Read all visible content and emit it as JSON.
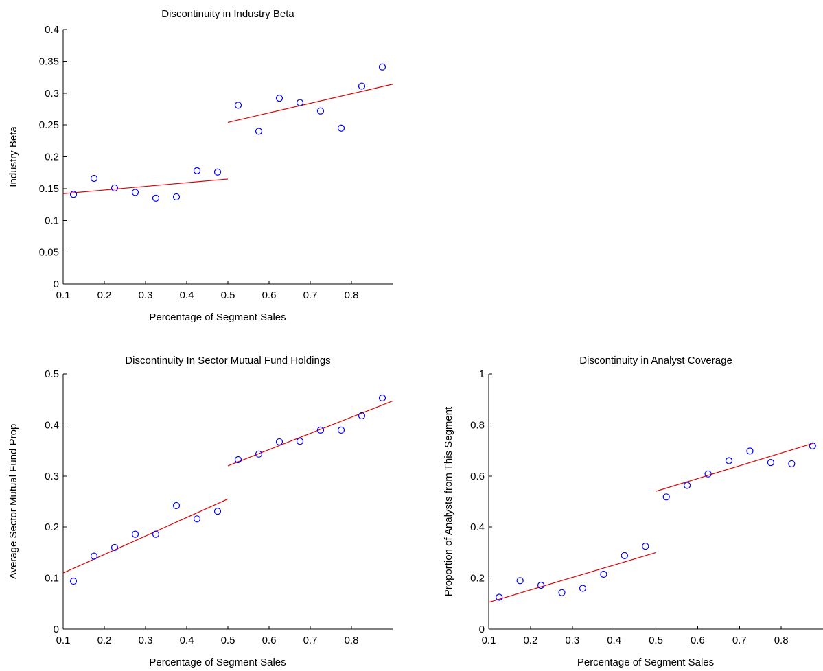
{
  "chart_data": [
    {
      "type": "scatter",
      "title": "Discontinuity in Industry Beta",
      "xlabel": "Percentage of Segment Sales",
      "ylabel": "Industry Beta",
      "xlim": [
        0.1,
        0.9
      ],
      "ylim": [
        0,
        0.4
      ],
      "xticks": [
        0.1,
        0.2,
        0.3,
        0.4,
        0.5,
        0.6,
        0.7,
        0.8
      ],
      "yticks": [
        0,
        0.05,
        0.1,
        0.15,
        0.2,
        0.25,
        0.3,
        0.35,
        0.4
      ],
      "xtick_labels": [
        "0.1",
        "0.2",
        "0.3",
        "0.4",
        "0.5",
        "0.6",
        "0.7",
        "0.8"
      ],
      "ytick_labels": [
        "0",
        "0.05",
        "0.1",
        "0.15",
        "0.2",
        "0.25",
        "0.3",
        "0.35",
        "0.4"
      ],
      "points": [
        [
          0.125,
          0.141
        ],
        [
          0.175,
          0.166
        ],
        [
          0.225,
          0.151
        ],
        [
          0.275,
          0.144
        ],
        [
          0.325,
          0.135
        ],
        [
          0.375,
          0.137
        ],
        [
          0.425,
          0.178
        ],
        [
          0.475,
          0.176
        ],
        [
          0.525,
          0.281
        ],
        [
          0.575,
          0.24
        ],
        [
          0.625,
          0.292
        ],
        [
          0.675,
          0.285
        ],
        [
          0.725,
          0.272
        ],
        [
          0.775,
          0.245
        ],
        [
          0.825,
          0.311
        ],
        [
          0.875,
          0.341
        ]
      ],
      "fit_lines": [
        [
          [
            0.1,
            0.142
          ],
          [
            0.5,
            0.165
          ]
        ],
        [
          [
            0.5,
            0.254
          ],
          [
            0.9,
            0.314
          ]
        ]
      ],
      "colors": {
        "points": "#0000ff",
        "fit": "#e00000"
      }
    },
    {
      "type": "scatter",
      "title": "Discontinuity In Sector Mutual Fund Holdings",
      "xlabel": "Percentage of Segment Sales",
      "ylabel": "Average Sector Mutual Fund Prop",
      "xlim": [
        0.1,
        0.9
      ],
      "ylim": [
        0,
        0.5
      ],
      "xticks": [
        0.1,
        0.2,
        0.3,
        0.4,
        0.5,
        0.6,
        0.7,
        0.8
      ],
      "yticks": [
        0,
        0.1,
        0.2,
        0.3,
        0.4,
        0.5
      ],
      "xtick_labels": [
        "0.1",
        "0.2",
        "0.3",
        "0.4",
        "0.5",
        "0.6",
        "0.7",
        "0.8"
      ],
      "ytick_labels": [
        "0",
        "0.1",
        "0.2",
        "0.3",
        "0.4",
        "0.5"
      ],
      "points": [
        [
          0.125,
          0.094
        ],
        [
          0.175,
          0.143
        ],
        [
          0.225,
          0.16
        ],
        [
          0.275,
          0.186
        ],
        [
          0.325,
          0.186
        ],
        [
          0.375,
          0.242
        ],
        [
          0.425,
          0.216
        ],
        [
          0.475,
          0.231
        ],
        [
          0.525,
          0.332
        ],
        [
          0.575,
          0.343
        ],
        [
          0.625,
          0.367
        ],
        [
          0.675,
          0.368
        ],
        [
          0.725,
          0.39
        ],
        [
          0.775,
          0.39
        ],
        [
          0.825,
          0.418
        ],
        [
          0.875,
          0.453
        ]
      ],
      "fit_lines": [
        [
          [
            0.1,
            0.11
          ],
          [
            0.5,
            0.255
          ]
        ],
        [
          [
            0.5,
            0.32
          ],
          [
            0.9,
            0.447
          ]
        ]
      ],
      "colors": {
        "points": "#0000ff",
        "fit": "#e00000"
      }
    },
    {
      "type": "scatter",
      "title": "Discontinuity in Analyst Coverage",
      "xlabel": "Percentage of Segment Sales",
      "ylabel": "Proportion of Analysts from This Segment",
      "xlim": [
        0.1,
        0.9
      ],
      "ylim": [
        0,
        1
      ],
      "xticks": [
        0.1,
        0.2,
        0.3,
        0.4,
        0.5,
        0.6,
        0.7,
        0.8
      ],
      "yticks": [
        0,
        0.2,
        0.4,
        0.6,
        0.8,
        1
      ],
      "xtick_labels": [
        "0.1",
        "0.2",
        "0.3",
        "0.4",
        "0.5",
        "0.6",
        "0.7",
        "0.8"
      ],
      "ytick_labels": [
        "0",
        "0.2",
        "0.4",
        "0.6",
        "0.8",
        "1"
      ],
      "points": [
        [
          0.125,
          0.125
        ],
        [
          0.175,
          0.19
        ],
        [
          0.225,
          0.172
        ],
        [
          0.275,
          0.143
        ],
        [
          0.325,
          0.16
        ],
        [
          0.375,
          0.215
        ],
        [
          0.425,
          0.288
        ],
        [
          0.475,
          0.325
        ],
        [
          0.525,
          0.518
        ],
        [
          0.575,
          0.563
        ],
        [
          0.625,
          0.608
        ],
        [
          0.675,
          0.66
        ],
        [
          0.725,
          0.698
        ],
        [
          0.775,
          0.653
        ],
        [
          0.825,
          0.648
        ],
        [
          0.875,
          0.718
        ]
      ],
      "fit_lines": [
        [
          [
            0.1,
            0.105
          ],
          [
            0.5,
            0.3
          ]
        ],
        [
          [
            0.5,
            0.54
          ],
          [
            0.88,
            0.73
          ]
        ]
      ],
      "colors": {
        "points": "#0000ff",
        "fit": "#e00000"
      }
    }
  ]
}
